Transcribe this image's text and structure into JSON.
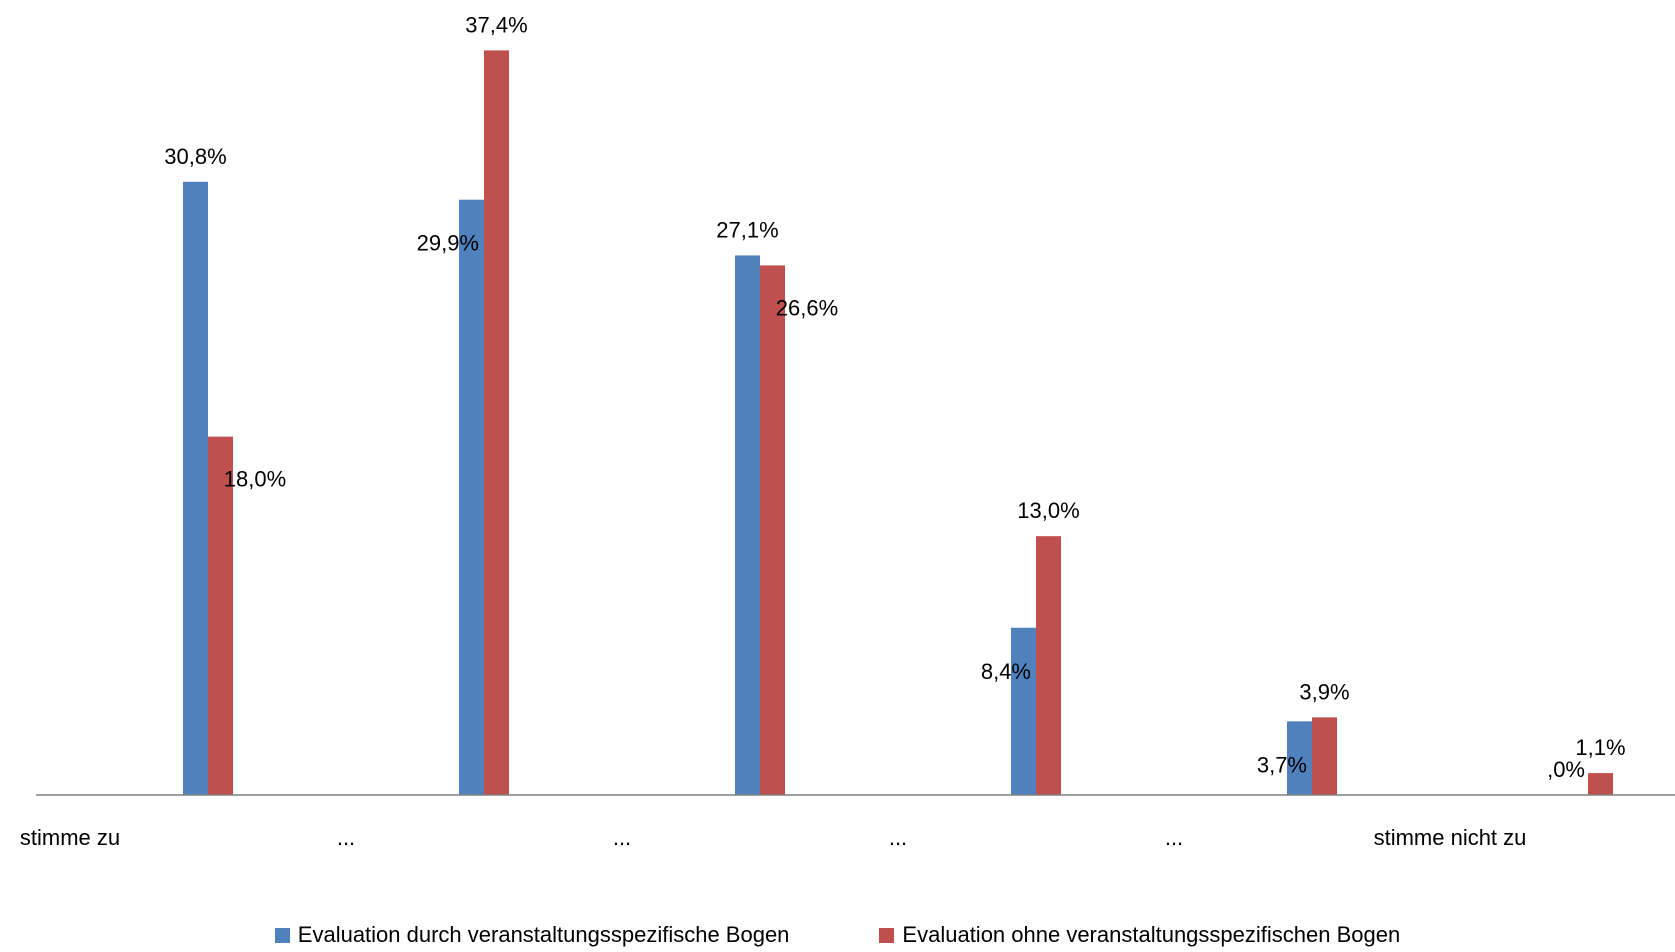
{
  "chart_data": {
    "type": "bar",
    "categories": [
      "stimme zu",
      "...",
      "...",
      "...",
      "...",
      "stimme nicht zu"
    ],
    "series": [
      {
        "name": "Evaluation durch veranstaltungsspezifische Bogen",
        "color": "#4F81BD",
        "values": [
          30.8,
          29.9,
          27.1,
          8.4,
          3.7,
          0.0
        ],
        "labels": [
          "30,8%",
          "29,9%",
          "27,1%",
          "8,4%",
          "3,7%",
          ",0%"
        ]
      },
      {
        "name": "Evaluation ohne veranstaltungsspezifischen Bogen",
        "color": "#C0504D",
        "values": [
          18.0,
          37.4,
          26.6,
          13.0,
          3.9,
          1.1
        ],
        "labels": [
          "18,0%",
          "37,4%",
          "26,6%",
          "13,0%",
          "3,9%",
          "1,1%"
        ]
      }
    ],
    "ylim": [
      0,
      40
    ],
    "grid": false,
    "legend_position": "bottom"
  }
}
